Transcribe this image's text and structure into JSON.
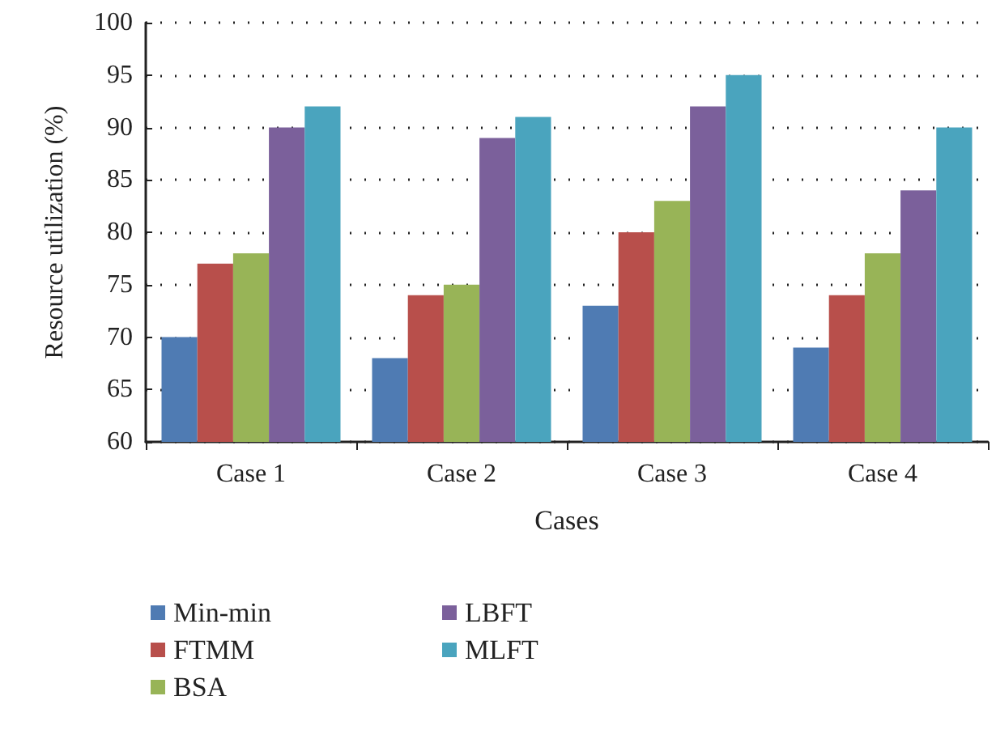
{
  "chart_data": {
    "type": "bar",
    "xlabel": "Cases",
    "ylabel": "Resource utilization (%)",
    "categories": [
      "Case 1",
      "Case 2",
      "Case 3",
      "Case 4"
    ],
    "series": [
      {
        "name": "Min-min",
        "color": "#4f7bb3",
        "values": [
          70,
          68,
          73,
          69
        ]
      },
      {
        "name": "FTMM",
        "color": "#b84f4b",
        "values": [
          77,
          74,
          80,
          74
        ]
      },
      {
        "name": "BSA",
        "color": "#98b457",
        "values": [
          78,
          75,
          83,
          78
        ]
      },
      {
        "name": "LBFT",
        "color": "#7b609b",
        "values": [
          90,
          89,
          92,
          84
        ]
      },
      {
        "name": "MLFT",
        "color": "#4aa4be",
        "values": [
          92,
          91,
          95,
          90
        ]
      }
    ],
    "ylim": [
      60,
      100
    ],
    "yticks": [
      60,
      65,
      70,
      75,
      80,
      85,
      90,
      95,
      100
    ],
    "grid": "y",
    "legend": "bottom left"
  }
}
